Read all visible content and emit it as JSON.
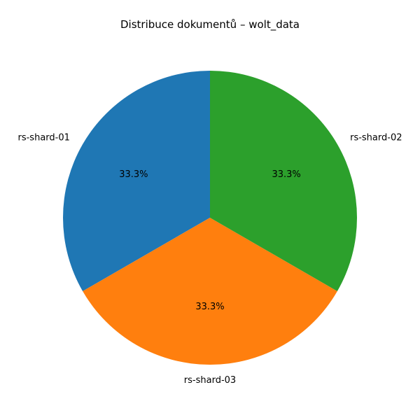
{
  "chart_data": {
    "type": "pie",
    "title": "Distribuce dokumentů – wolt_data",
    "categories": [
      "rs-shard-01",
      "rs-shard-03",
      "rs-shard-02"
    ],
    "values": [
      33.3,
      33.3,
      33.3
    ],
    "percent_labels": [
      "33.3%",
      "33.3%",
      "33.3%"
    ],
    "colors": [
      "#1f77b4",
      "#ff7f0e",
      "#2ca02c"
    ],
    "start_angle_deg": 90,
    "direction": "counterclockwise",
    "legend": "none"
  }
}
